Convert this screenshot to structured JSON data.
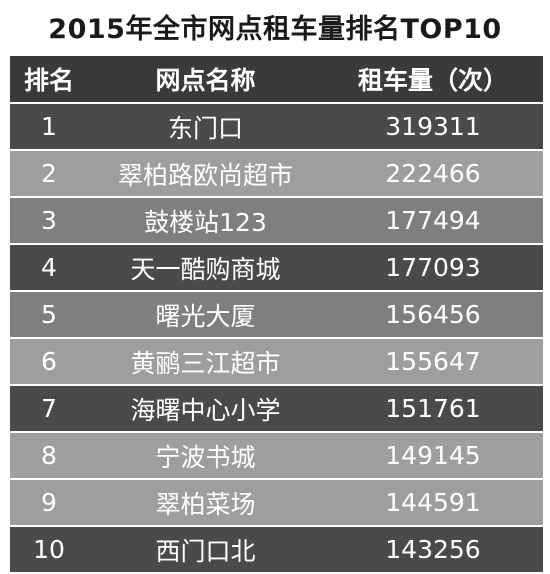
{
  "title": "2015年全市网点租车量排名TOP10",
  "table": {
    "headers": [
      "排名",
      "网点名称",
      "租车量（次）"
    ],
    "rows": [
      {
        "rank": "1",
        "name": "东门口",
        "count": "319311",
        "shade": "dark"
      },
      {
        "rank": "2",
        "name": "翠柏路欧尚超市",
        "count": "222466",
        "shade": "light"
      },
      {
        "rank": "3",
        "name": "鼓楼站123",
        "count": "177494",
        "shade": "mid"
      },
      {
        "rank": "4",
        "name": "天一酷购商城",
        "count": "177093",
        "shade": "dark"
      },
      {
        "rank": "5",
        "name": "曙光大厦",
        "count": "156456",
        "shade": "mid"
      },
      {
        "rank": "6",
        "name": "黄鹂三江超市",
        "count": "155647",
        "shade": "light"
      },
      {
        "rank": "7",
        "name": "海曙中心小学",
        "count": "151761",
        "shade": "dark"
      },
      {
        "rank": "8",
        "name": "宁波书城",
        "count": "149145",
        "shade": "light"
      },
      {
        "rank": "9",
        "name": "翠柏菜场",
        "count": "144591",
        "shade": "light"
      },
      {
        "rank": "10",
        "name": "西门口北",
        "count": "143256",
        "shade": "dark"
      }
    ]
  }
}
